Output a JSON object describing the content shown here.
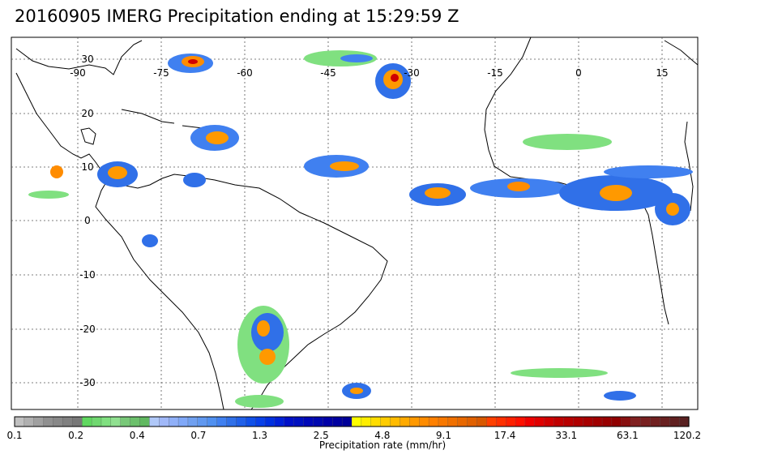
{
  "title": "20160905 IMERG Precipitation ending at 15:29:59 Z",
  "map": {
    "lon_labels": [
      "-90",
      "-75",
      "-60",
      "-45",
      "-30",
      "-15",
      "0",
      "15"
    ],
    "lat_labels": [
      "30",
      "20",
      "10",
      "0",
      "-10",
      "-20",
      "-30"
    ],
    "gridlines": true
  },
  "colorbar": {
    "label": "Precipitation rate (mm/hr)",
    "tick_labels": [
      "0.1",
      "0.2",
      "0.4",
      "0.7",
      "1.3",
      "2.5",
      "4.8",
      "9.1",
      "17.4",
      "33.1",
      "63.1",
      "120.2"
    ],
    "colors": [
      "#c0c0c0",
      "#b0b0b0",
      "#a0a0a0",
      "#909090",
      "#888888",
      "#808080",
      "#787878",
      "#60d860",
      "#70d870",
      "#80e080",
      "#90e090",
      "#78c878",
      "#6cc06c",
      "#60b860",
      "#b0c8f8",
      "#a0b8f8",
      "#90b0f8",
      "#80a8f8",
      "#70a0f0",
      "#6098f0",
      "#5090f0",
      "#4080f0",
      "#3070e8",
      "#2060e8",
      "#1050e8",
      "#0840e8",
      "#0030e0",
      "#0020d8",
      "#0010c8",
      "#0010c0",
      "#0008b8",
      "#0008b0",
      "#0000a8",
      "#0000a0",
      "#000098",
      "#ffff00",
      "#ffee00",
      "#ffdd00",
      "#ffcc00",
      "#ffbb00",
      "#ffaa00",
      "#ff9900",
      "#ff8c00",
      "#ff8000",
      "#f87800",
      "#f07000",
      "#e86800",
      "#e06000",
      "#d85800",
      "#ff4000",
      "#ff3000",
      "#ff2000",
      "#ff1000",
      "#f00000",
      "#e00000",
      "#d00000",
      "#c00000",
      "#b80000",
      "#b00000",
      "#a80000",
      "#a00000",
      "#980000",
      "#900000",
      "#881010",
      "#802020",
      "#782020",
      "#702020",
      "#682020",
      "#602020",
      "#582020"
    ]
  }
}
